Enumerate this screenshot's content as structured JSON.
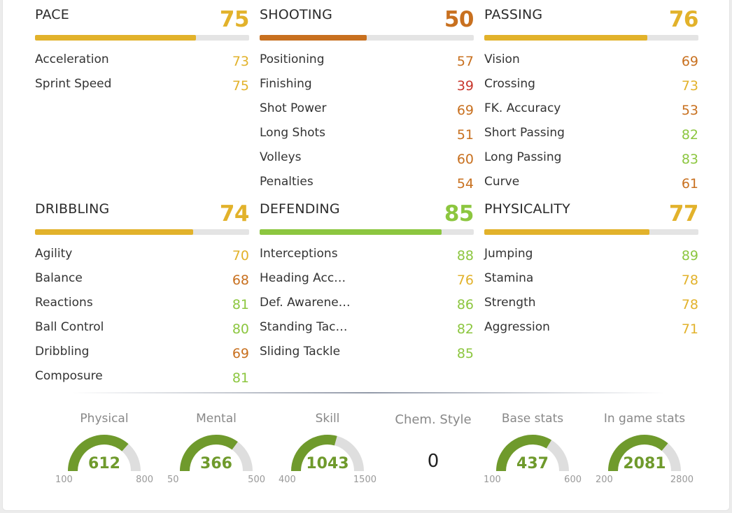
{
  "colors": {
    "yellow": "#e2b22b",
    "orange": "#c8701f",
    "light_green": "#8cc63f",
    "red": "#c8372d",
    "gauge_green": "#6f9a2c",
    "gauge_track": "#dedede"
  },
  "categories": [
    {
      "name": "PACE",
      "value": 75,
      "color": "#e2b22b",
      "stats": [
        {
          "name": "Acceleration",
          "value": 73,
          "color": "#e2b22b"
        },
        {
          "name": "Sprint Speed",
          "value": 75,
          "color": "#e2b22b"
        }
      ]
    },
    {
      "name": "SHOOTING",
      "value": 50,
      "color": "#c8701f",
      "stats": [
        {
          "name": "Positioning",
          "value": 57,
          "color": "#c8701f"
        },
        {
          "name": "Finishing",
          "value": 39,
          "color": "#c8372d"
        },
        {
          "name": "Shot Power",
          "value": 69,
          "color": "#c8701f"
        },
        {
          "name": "Long Shots",
          "value": 51,
          "color": "#c8701f"
        },
        {
          "name": "Volleys",
          "value": 60,
          "color": "#c8701f"
        },
        {
          "name": "Penalties",
          "value": 54,
          "color": "#c8701f"
        }
      ]
    },
    {
      "name": "PASSING",
      "value": 76,
      "color": "#e2b22b",
      "stats": [
        {
          "name": "Vision",
          "value": 69,
          "color": "#c8701f"
        },
        {
          "name": "Crossing",
          "value": 73,
          "color": "#e2b22b"
        },
        {
          "name": "FK. Accuracy",
          "value": 53,
          "color": "#c8701f"
        },
        {
          "name": "Short Passing",
          "value": 82,
          "color": "#8cc63f"
        },
        {
          "name": "Long Passing",
          "value": 83,
          "color": "#8cc63f"
        },
        {
          "name": "Curve",
          "value": 61,
          "color": "#c8701f"
        }
      ]
    },
    {
      "name": "DRIBBLING",
      "value": 74,
      "color": "#e2b22b",
      "stats": [
        {
          "name": "Agility",
          "value": 70,
          "color": "#e2b22b"
        },
        {
          "name": "Balance",
          "value": 68,
          "color": "#c8701f"
        },
        {
          "name": "Reactions",
          "value": 81,
          "color": "#8cc63f"
        },
        {
          "name": "Ball Control",
          "value": 80,
          "color": "#8cc63f"
        },
        {
          "name": "Dribbling",
          "value": 69,
          "color": "#c8701f"
        },
        {
          "name": "Composure",
          "value": 81,
          "color": "#8cc63f"
        }
      ]
    },
    {
      "name": "DEFENDING",
      "value": 85,
      "color": "#8cc63f",
      "stats": [
        {
          "name": "Interceptions",
          "value": 88,
          "color": "#8cc63f"
        },
        {
          "name": "Heading Acc…",
          "value": 76,
          "color": "#e2b22b"
        },
        {
          "name": "Def. Awarene…",
          "value": 86,
          "color": "#8cc63f"
        },
        {
          "name": "Standing Tac…",
          "value": 82,
          "color": "#8cc63f"
        },
        {
          "name": "Sliding Tackle",
          "value": 85,
          "color": "#8cc63f"
        }
      ]
    },
    {
      "name": "PHYSICALITY",
      "value": 77,
      "color": "#e2b22b",
      "stats": [
        {
          "name": "Jumping",
          "value": 89,
          "color": "#8cc63f"
        },
        {
          "name": "Stamina",
          "value": 78,
          "color": "#e2b22b"
        },
        {
          "name": "Strength",
          "value": 78,
          "color": "#e2b22b"
        },
        {
          "name": "Aggression",
          "value": 71,
          "color": "#e2b22b"
        }
      ]
    }
  ],
  "gauges": [
    {
      "label": "Physical",
      "value": 612,
      "min": 100,
      "max": 800
    },
    {
      "label": "Mental",
      "value": 366,
      "min": 50,
      "max": 500
    },
    {
      "label": "Skill",
      "value": 1043,
      "min": 400,
      "max": 1500
    },
    {
      "label": "Base stats",
      "value": 437,
      "min": 100,
      "max": 600
    },
    {
      "label": "In game stats",
      "value": 2081,
      "min": 200,
      "max": 2800
    }
  ],
  "chem_style": {
    "label": "Chem. Style",
    "value": "0"
  }
}
